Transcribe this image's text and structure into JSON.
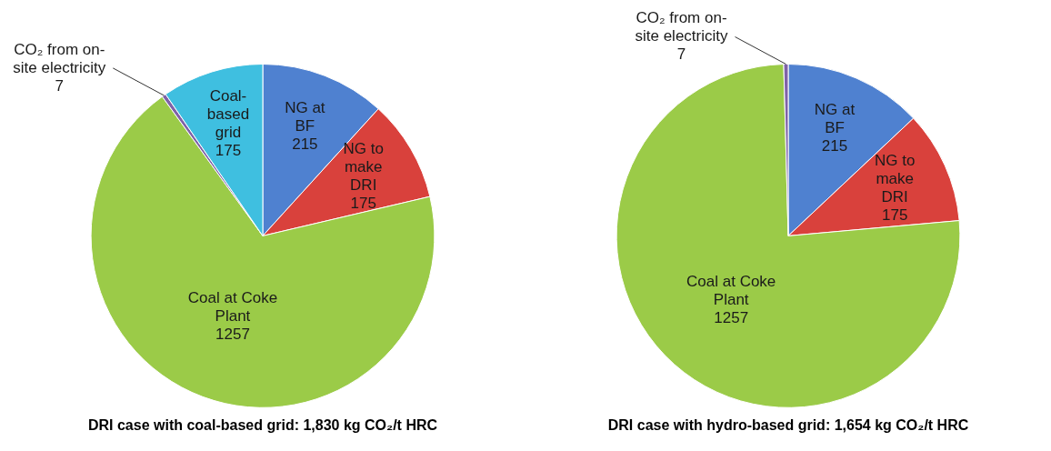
{
  "chart_data": [
    {
      "type": "pie",
      "title": "DRI case with coal-based grid: 1,830 kg CO₂/t HRC",
      "categories": [
        "NG at BF",
        "NG to make DRI",
        "Coal at Coke Plant",
        "CO₂ from on-site electricity",
        "Coal-based grid"
      ],
      "values": [
        215,
        175,
        1257,
        7,
        175
      ],
      "colors": [
        "#4f81d0",
        "#d9413c",
        "#9bcb48",
        "#7f62a8",
        "#3fbfe0"
      ],
      "data_labels": true,
      "legend": false
    },
    {
      "type": "pie",
      "title": "DRI case with hydro-based grid: 1,654 kg CO₂/t HRC",
      "categories": [
        "NG at BF",
        "NG to make DRI",
        "Coal at Coke Plant",
        "CO₂ from on-site electricity"
      ],
      "values": [
        215,
        175,
        1257,
        7
      ],
      "colors": [
        "#4f81d0",
        "#d9413c",
        "#9bcb48",
        "#7f62a8"
      ],
      "data_labels": true,
      "legend": false
    }
  ]
}
